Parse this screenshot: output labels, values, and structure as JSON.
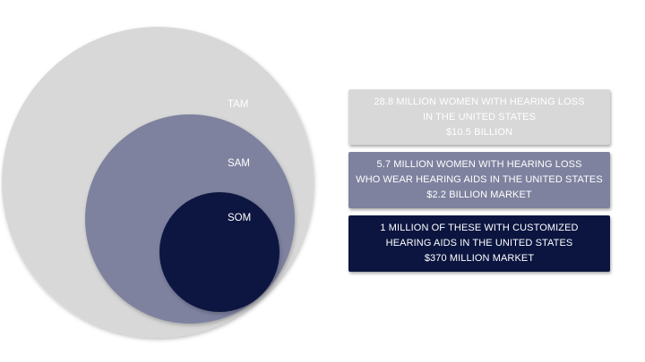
{
  "colors": {
    "tam": "#d8d8d8",
    "sam": "#7e829f",
    "som": "#0b1540"
  },
  "circles": {
    "tam_label": "TAM",
    "sam_label": "SAM",
    "som_label": "SOM"
  },
  "boxes": {
    "tam": {
      "line1": "28.8 MILLION  WOMEN WITH HEARING LOSS",
      "line2": "IN THE UNITED STATES",
      "line3": "$10.5 BILLION"
    },
    "sam": {
      "line1": "5.7 MILLION  WOMEN WITH HEARING LOSS",
      "line2": "WHO WEAR HEARING AIDS IN THE UNITED STATES",
      "line3": "$2.2 BILLION MARKET"
    },
    "som": {
      "line1": "1 MILLION  OF THESE WITH CUSTOMIZED",
      "line2": "HEARING AIDS IN THE UNITED STATES",
      "line3": "$370 MILLION MARKET"
    }
  }
}
